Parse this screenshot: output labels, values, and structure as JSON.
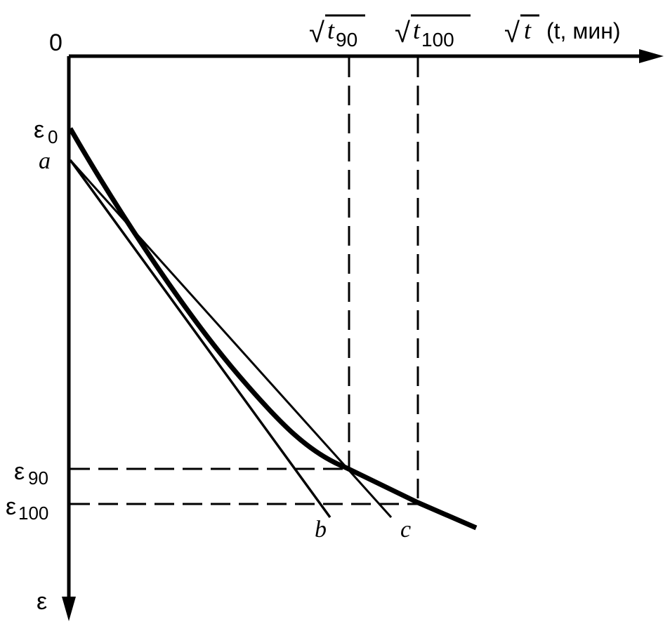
{
  "diagram": {
    "origin_label": "0",
    "x_axis_label": {
      "root": "√",
      "var": "t",
      "unit": "(t, мин)"
    },
    "y_axis_label": "ε",
    "t90_label": {
      "root": "√",
      "var": "t",
      "sub": "90"
    },
    "t100_label": {
      "root": "√",
      "var": "t",
      "sub": "100"
    },
    "eps0_label": {
      "base": "ε",
      "sub": "0"
    },
    "eps90_label": {
      "base": "ε",
      "sub": "90"
    },
    "eps100_label": {
      "base": "ε",
      "sub": "100"
    },
    "point_a": "a",
    "point_b": "b",
    "point_c": "c"
  }
}
